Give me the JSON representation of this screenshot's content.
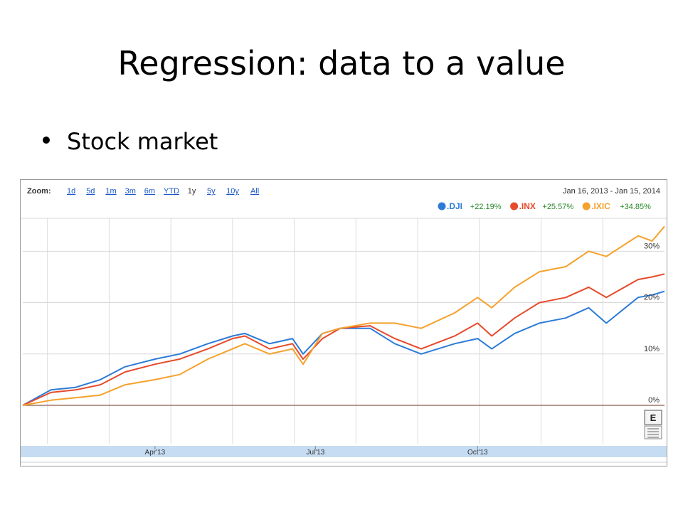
{
  "slide": {
    "title": "Regression: data to a value",
    "bullet": "Stock market"
  },
  "chart_toolbar": {
    "zoom_label": "Zoom:",
    "zoom_options": [
      "1d",
      "5d",
      "1m",
      "3m",
      "6m",
      "YTD",
      "1y",
      "5y",
      "10y",
      "All"
    ],
    "zoom_active": "1y",
    "date_range": "Jan 16, 2013  -  Jan 15, 2014",
    "e_button": "E"
  },
  "chart_data": {
    "type": "line",
    "title": "",
    "xlabel": "",
    "ylabel": "",
    "y_unit": "%",
    "ylim": [
      0,
      36
    ],
    "y_ticks": [
      {
        "value": 0,
        "label": "0%"
      },
      {
        "value": 10,
        "label": "10%"
      },
      {
        "value": 20,
        "label": "20%"
      },
      {
        "value": 30,
        "label": "30%"
      }
    ],
    "xlim": [
      "2013-01-16",
      "2014-01-15"
    ],
    "x_tick_labels": [
      {
        "date": "2013-04-01",
        "label": "Apr'13"
      },
      {
        "date": "2013-07-01",
        "label": "Jul'13"
      },
      {
        "date": "2013-10-01",
        "label": "Oct'13"
      }
    ],
    "grid": true,
    "legend_position": "top-right",
    "x": [
      "2013-01-16",
      "2013-02-01",
      "2013-02-15",
      "2013-03-01",
      "2013-03-15",
      "2013-04-01",
      "2013-04-15",
      "2013-05-01",
      "2013-05-15",
      "2013-05-22",
      "2013-06-05",
      "2013-06-18",
      "2013-06-24",
      "2013-07-05",
      "2013-07-15",
      "2013-08-01",
      "2013-08-15",
      "2013-08-30",
      "2013-09-18",
      "2013-10-01",
      "2013-10-09",
      "2013-10-22",
      "2013-11-05",
      "2013-11-20",
      "2013-12-03",
      "2013-12-13",
      "2013-12-31",
      "2014-01-08",
      "2014-01-15"
    ],
    "series": [
      {
        "name": ".DJI",
        "change": "+22.19%",
        "color": "#2b7bd8",
        "values": [
          0,
          3,
          3.5,
          5,
          7.5,
          9,
          10,
          12,
          13.5,
          14,
          12,
          13,
          10,
          14,
          15,
          15,
          12,
          10,
          12,
          13,
          11,
          14,
          16,
          17,
          19,
          16,
          21,
          21.5,
          22.19
        ]
      },
      {
        "name": ".INX",
        "change": "+25.57%",
        "color": "#e64a2a",
        "values": [
          0,
          2.5,
          3,
          4,
          6.5,
          8,
          9,
          11,
          13,
          13.5,
          11,
          12,
          9,
          13,
          15,
          15.5,
          13,
          11,
          13.5,
          16,
          13.5,
          17,
          20,
          21,
          23,
          21,
          24.5,
          25,
          25.57
        ]
      },
      {
        "name": ".IXIC",
        "change": "+34.85%",
        "color": "#f5a12c",
        "values": [
          0,
          1,
          1.5,
          2,
          4,
          5,
          6,
          9,
          11,
          12,
          10,
          11,
          8,
          14,
          15,
          16,
          16,
          15,
          18,
          21,
          19,
          23,
          26,
          27,
          30,
          29,
          33,
          32,
          34.85
        ]
      }
    ]
  }
}
